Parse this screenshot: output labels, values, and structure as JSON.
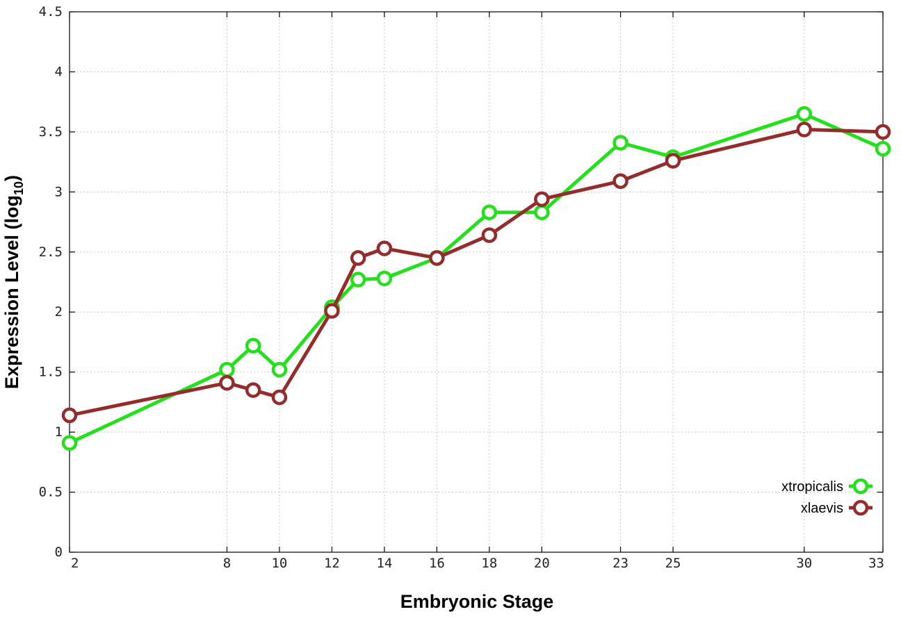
{
  "chart_data": {
    "type": "line",
    "title": "",
    "xlabel": "Embryonic Stage",
    "ylabel": "Expression Level (log",
    "ylabel_subscript": "10",
    "ylabel_close": ")",
    "x_ticks": [
      {
        "value": 2,
        "label": "2"
      },
      {
        "value": 8,
        "label": "8"
      },
      {
        "value": 10,
        "label": "10"
      },
      {
        "value": 12,
        "label": "12"
      },
      {
        "value": 14,
        "label": "14"
      },
      {
        "value": 16,
        "label": "16"
      },
      {
        "value": 18,
        "label": "18"
      },
      {
        "value": 20,
        "label": "20"
      },
      {
        "value": 23,
        "label": "23"
      },
      {
        "value": 25,
        "label": "25"
      },
      {
        "value": 30,
        "label": "30"
      },
      {
        "value": 33,
        "label": "33"
      }
    ],
    "y_ticks": [
      {
        "value": 0,
        "label": "0"
      },
      {
        "value": 0.5,
        "label": "0.5"
      },
      {
        "value": 1,
        "label": "1"
      },
      {
        "value": 1.5,
        "label": "1.5"
      },
      {
        "value": 2,
        "label": "2"
      },
      {
        "value": 2.5,
        "label": "2.5"
      },
      {
        "value": 3,
        "label": "3"
      },
      {
        "value": 3.5,
        "label": "3.5"
      },
      {
        "value": 4,
        "label": "4"
      },
      {
        "value": 4.5,
        "label": "4.5"
      }
    ],
    "xlim": [
      2,
      33
    ],
    "ylim": [
      0,
      4.5
    ],
    "grid": true,
    "legend_position": "bottom-right",
    "series": [
      {
        "name": "xtropicalis",
        "color": "#22e01a",
        "x": [
          2,
          8,
          9,
          10,
          12,
          13,
          14,
          16,
          18,
          20,
          23,
          25,
          30,
          33
        ],
        "y": [
          0.91,
          1.52,
          1.72,
          1.52,
          2.04,
          2.27,
          2.28,
          2.45,
          2.83,
          2.83,
          3.41,
          3.29,
          3.65,
          3.36
        ]
      },
      {
        "name": "xlaevis",
        "color": "#952b2b",
        "x": [
          2,
          8,
          9,
          10,
          12,
          13,
          14,
          16,
          18,
          20,
          23,
          25,
          30,
          33
        ],
        "y": [
          1.14,
          1.41,
          1.35,
          1.29,
          2.01,
          2.45,
          2.53,
          2.45,
          2.64,
          2.94,
          3.09,
          3.26,
          3.52,
          3.5
        ]
      }
    ]
  }
}
